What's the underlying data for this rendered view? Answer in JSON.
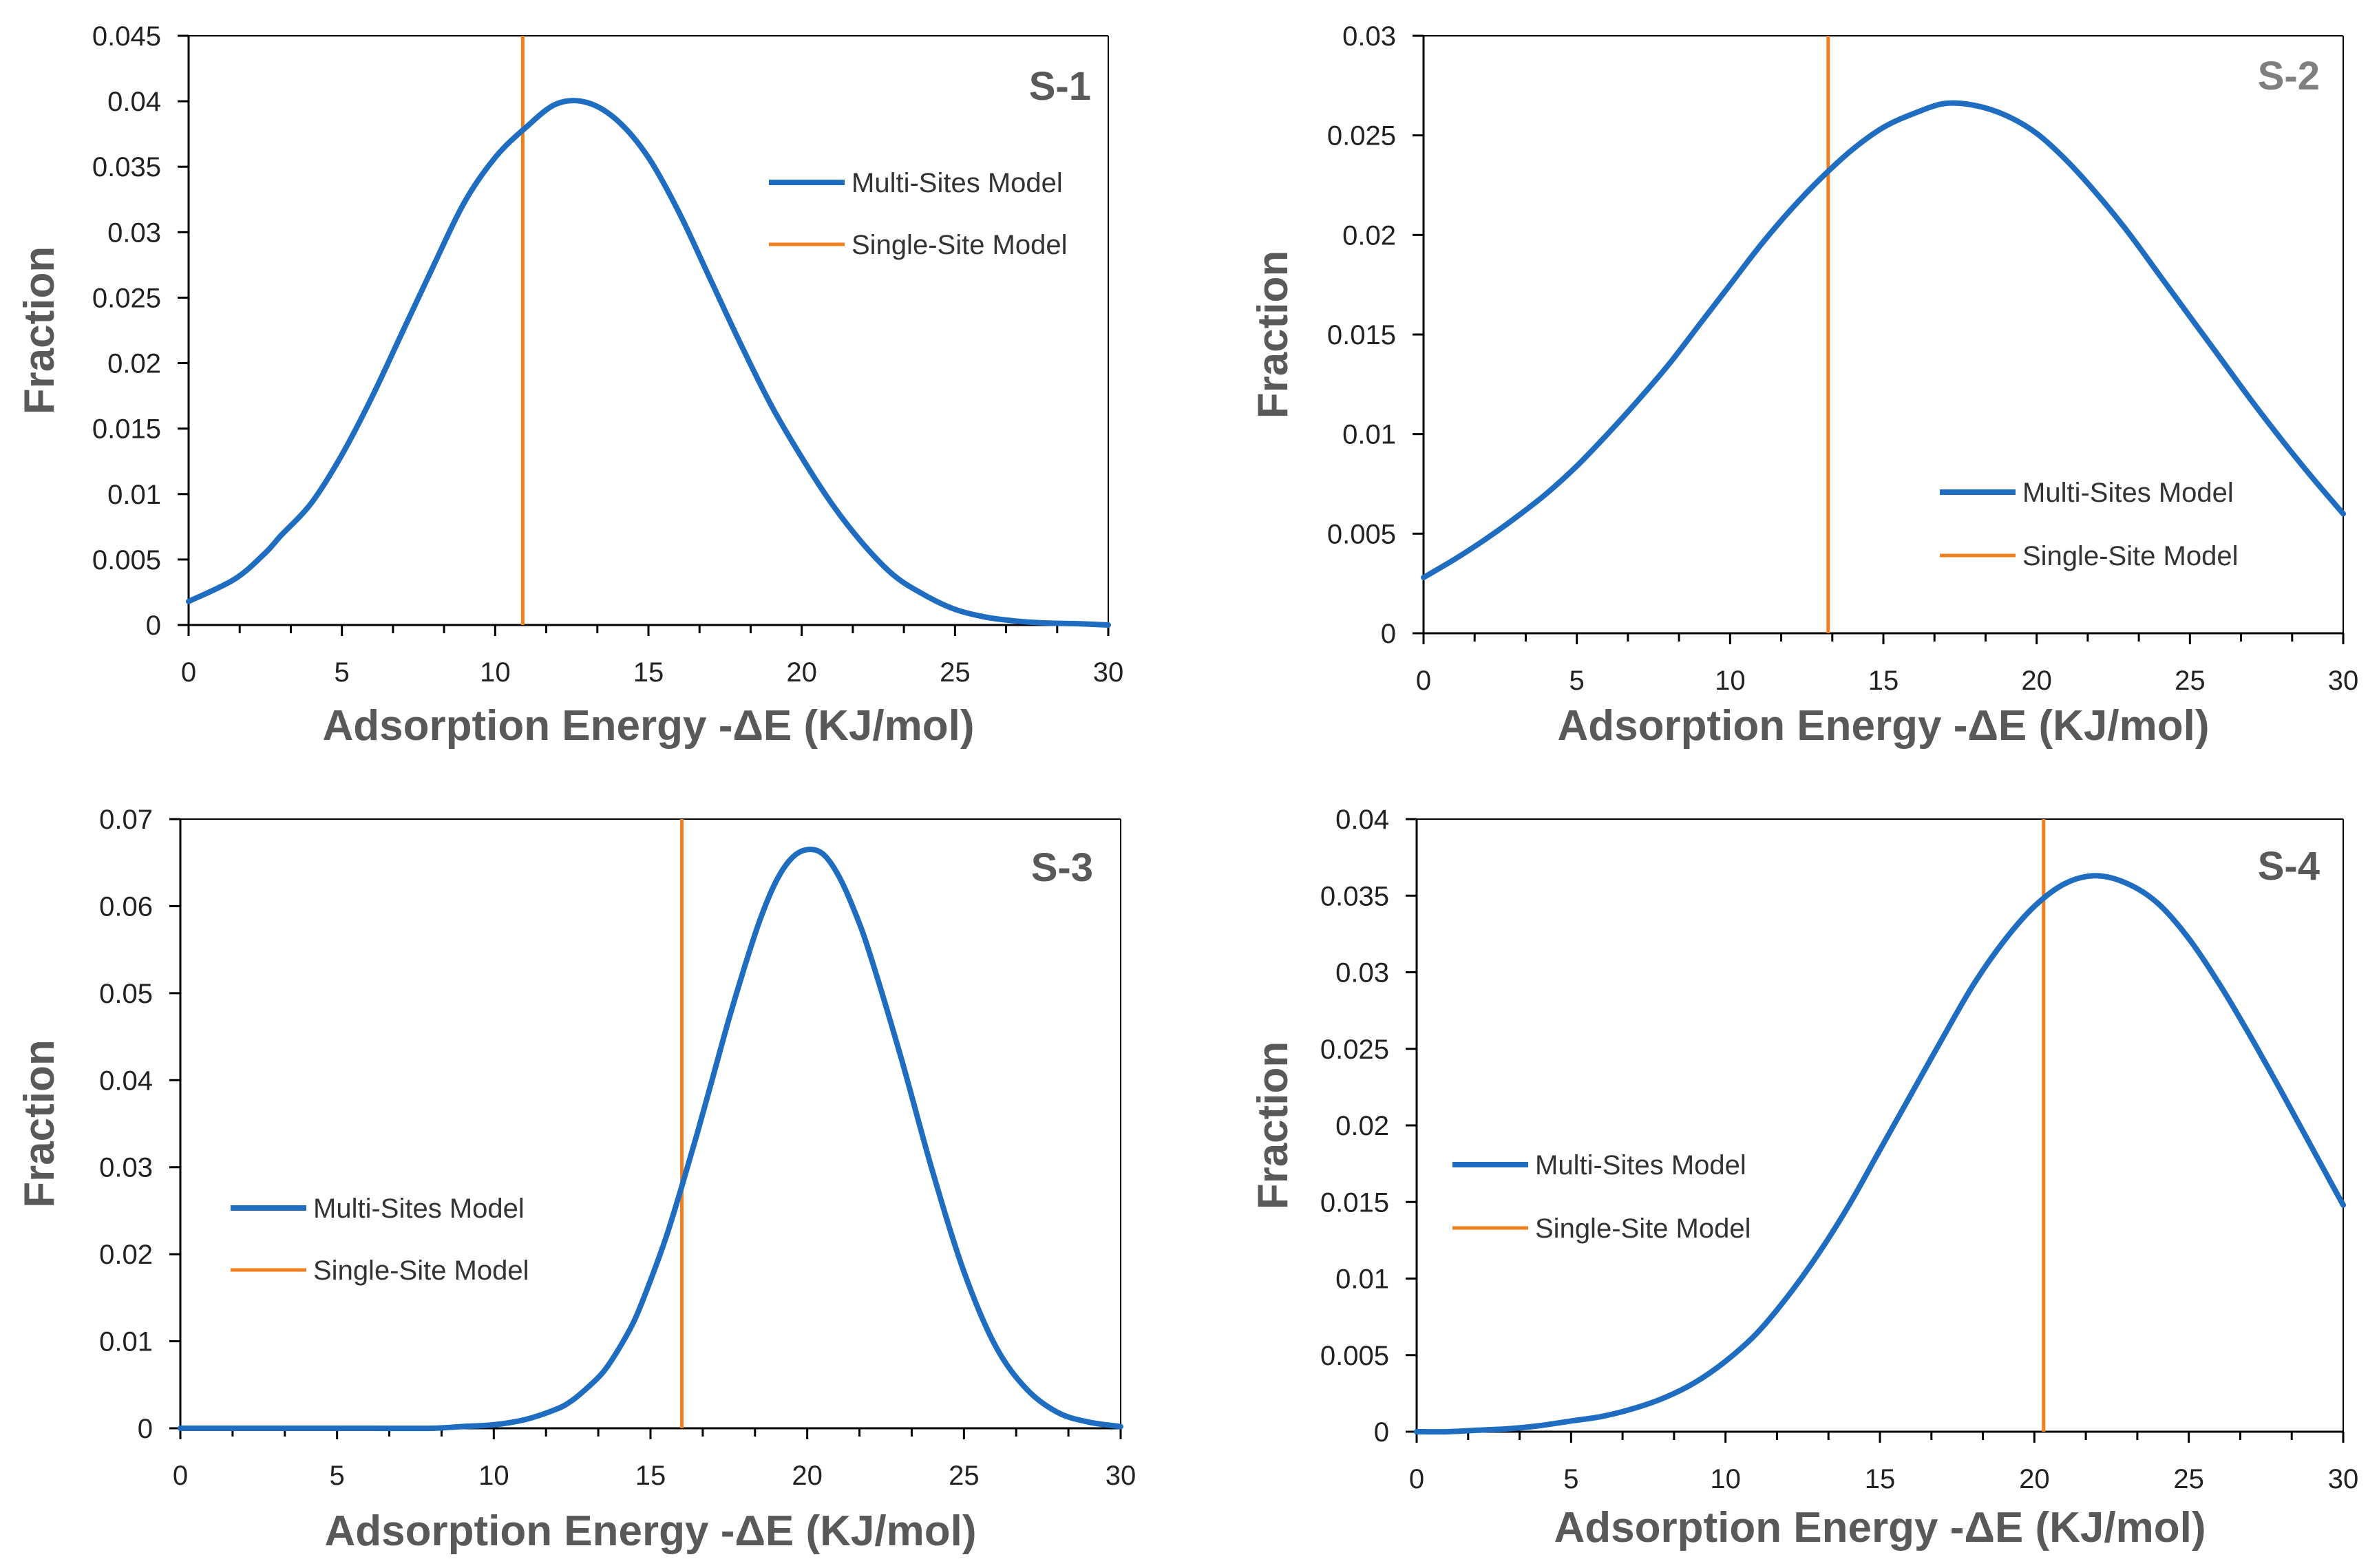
{
  "colors": {
    "multi_sites": "#1f6dc1",
    "single_site": "#f07f1d",
    "axis": "#000000",
    "text": "#222222",
    "label": "#595959"
  },
  "chart_data": [
    {
      "type": "line",
      "panel_label": "S-1",
      "xlabel": "Adsorption Energy -ΔE (KJ/mol)",
      "ylabel": "Fraction",
      "xlim": [
        0,
        30
      ],
      "ylim": [
        0,
        0.045
      ],
      "xticks": [
        0,
        5,
        10,
        15,
        20,
        25,
        30
      ],
      "yticks": [
        0,
        0.005,
        0.01,
        0.015,
        0.02,
        0.025,
        0.03,
        0.035,
        0.04,
        0.045
      ],
      "yticklabels": [
        "0",
        "0.005",
        "0.01",
        "0.015",
        "0.02",
        "0.025",
        "0.03",
        "0.035",
        "0.04",
        "0.045"
      ],
      "legend_position": "upper-right",
      "series": [
        {
          "name": "Multi-Sites Model",
          "x": [
            0,
            1.5,
            2.5,
            3,
            4,
            5,
            6,
            7,
            8,
            9,
            10,
            11,
            12,
            13,
            14,
            15,
            16,
            17,
            18,
            19,
            20,
            21,
            22,
            23,
            24,
            25,
            26,
            27,
            28,
            29,
            30
          ],
          "y": [
            0.0018,
            0.0035,
            0.0055,
            0.0068,
            0.0093,
            0.013,
            0.0175,
            0.0225,
            0.0275,
            0.0323,
            0.0357,
            0.038,
            0.0398,
            0.0399,
            0.0385,
            0.0357,
            0.0315,
            0.0265,
            0.0215,
            0.0168,
            0.0128,
            0.0092,
            0.0062,
            0.0038,
            0.0023,
            0.0012,
            0.0006,
            0.0003,
            0.00015,
            0.0001,
            0
          ]
        },
        {
          "name": "Single-Site Model",
          "vline_x": 10.9
        }
      ]
    },
    {
      "type": "line",
      "panel_label": "S-2",
      "xlabel": "Adsorption Energy -ΔE (KJ/mol)",
      "ylabel": "Fraction",
      "xlim": [
        0,
        30
      ],
      "ylim": [
        0,
        0.03
      ],
      "xticks": [
        0,
        5,
        10,
        15,
        20,
        25,
        30
      ],
      "yticks": [
        0,
        0.005,
        0.01,
        0.015,
        0.02,
        0.025,
        0.03
      ],
      "yticklabels": [
        "0",
        "0.005",
        "0.01",
        "0.015",
        "0.02",
        "0.025",
        "0.03"
      ],
      "legend_position": "lower-right",
      "series": [
        {
          "name": "Multi-Sites Model",
          "x": [
            0,
            1,
            2,
            3,
            4,
            5,
            6,
            7,
            8,
            9,
            10,
            11,
            12,
            13,
            14,
            15,
            16,
            17,
            18,
            19,
            20,
            21,
            22,
            23,
            24,
            25,
            26,
            27,
            28,
            29,
            30
          ],
          "y": [
            0.0028,
            0.0037,
            0.0047,
            0.0058,
            0.007,
            0.0084,
            0.01,
            0.0117,
            0.0135,
            0.0155,
            0.0175,
            0.0195,
            0.0213,
            0.0229,
            0.0243,
            0.0254,
            0.0261,
            0.0266,
            0.0265,
            0.026,
            0.0251,
            0.0237,
            0.022,
            0.0201,
            0.018,
            0.0159,
            0.0138,
            0.0117,
            0.0097,
            0.0078,
            0.006
          ]
        },
        {
          "name": "Single-Site Model",
          "vline_x": 13.2
        }
      ]
    },
    {
      "type": "line",
      "panel_label": "S-3",
      "xlabel": "Adsorption Energy -ΔE (KJ/mol)",
      "ylabel": "Fraction",
      "xlim": [
        0,
        30
      ],
      "ylim": [
        0,
        0.07
      ],
      "xticks": [
        0,
        5,
        10,
        15,
        20,
        25,
        30
      ],
      "yticks": [
        0,
        0.01,
        0.02,
        0.03,
        0.04,
        0.05,
        0.06,
        0.07
      ],
      "yticklabels": [
        "0",
        "0.01",
        "0.02",
        "0.03",
        "0.04",
        "0.05",
        "0.06",
        "0.07"
      ],
      "legend_position": "center-left",
      "series": [
        {
          "name": "Multi-Sites Model",
          "x": [
            0,
            2,
            4,
            6,
            8,
            9,
            10,
            11,
            12,
            12.5,
            13,
            13.5,
            14,
            14.5,
            15,
            15.5,
            16,
            16.5,
            17,
            17.5,
            18,
            18.5,
            19,
            19.5,
            20,
            20.5,
            21,
            21.5,
            22,
            23,
            24,
            25,
            26,
            27,
            28,
            29,
            30
          ],
          "y": [
            0,
            0,
            0,
            0,
            0,
            0.0002,
            0.0004,
            0.001,
            0.0022,
            0.0032,
            0.0047,
            0.0065,
            0.0092,
            0.0125,
            0.017,
            0.022,
            0.0278,
            0.034,
            0.0405,
            0.047,
            0.053,
            0.0585,
            0.0628,
            0.0655,
            0.0665,
            0.066,
            0.0635,
            0.0595,
            0.0545,
            0.0425,
            0.0295,
            0.018,
            0.0095,
            0.0045,
            0.0018,
            0.0007,
            0.0002
          ]
        },
        {
          "name": "Single-Site Model",
          "vline_x": 16
        }
      ]
    },
    {
      "type": "line",
      "panel_label": "S-4",
      "xlabel": "Adsorption Energy -ΔE (KJ/mol)",
      "ylabel": "Fraction",
      "xlim": [
        0,
        30
      ],
      "ylim": [
        0,
        0.04
      ],
      "xticks": [
        0,
        5,
        10,
        15,
        20,
        25,
        30
      ],
      "yticks": [
        0,
        0.005,
        0.01,
        0.015,
        0.02,
        0.025,
        0.03,
        0.035,
        0.04
      ],
      "yticklabels": [
        "0",
        "0.005",
        "0.01",
        "0.015",
        "0.02",
        "0.025",
        "0.03",
        "0.035",
        "0.04"
      ],
      "legend_position": "center-left",
      "series": [
        {
          "name": "Multi-Sites Model",
          "x": [
            0,
            1,
            2,
            3,
            4,
            5,
            6,
            7,
            8,
            9,
            10,
            11,
            12,
            13,
            14,
            15,
            16,
            17,
            18,
            19,
            20,
            21,
            22,
            23,
            24,
            25,
            26,
            27,
            28,
            29,
            30
          ],
          "y": [
            0,
            0,
            0.0001,
            0.0002,
            0.0004,
            0.0007,
            0.001,
            0.0015,
            0.0022,
            0.0032,
            0.0046,
            0.0064,
            0.0088,
            0.0116,
            0.0148,
            0.0184,
            0.022,
            0.0256,
            0.0291,
            0.032,
            0.0343,
            0.0358,
            0.0363,
            0.0358,
            0.0345,
            0.0322,
            0.0292,
            0.0258,
            0.0222,
            0.0185,
            0.0148
          ]
        },
        {
          "name": "Single-Site Model",
          "vline_x": 20.3
        }
      ]
    }
  ]
}
